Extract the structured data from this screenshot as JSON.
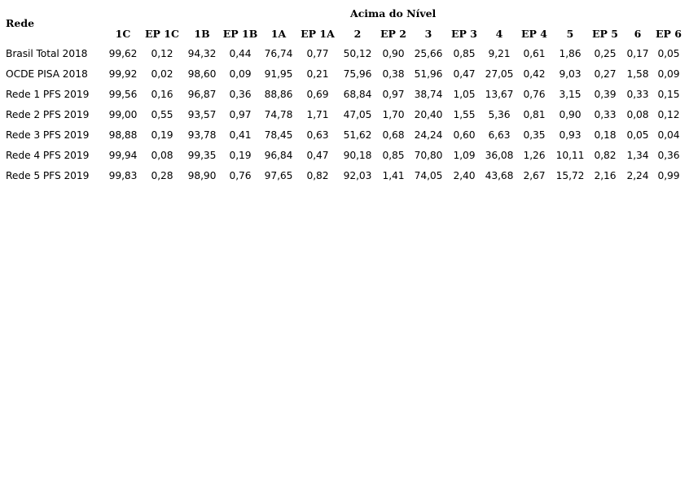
{
  "table": {
    "row_header": "Rede",
    "group_header": "Acima do Nível",
    "columns": [
      "1C",
      "EP 1C",
      "1B",
      "EP 1B",
      "1A",
      "EP 1A",
      "2",
      "EP 2",
      "3",
      "EP 3",
      "4",
      "EP 4",
      "5",
      "EP 5",
      "6",
      "EP 6"
    ],
    "rows": [
      {
        "label": "Brasil Total 2018",
        "values": [
          "99,62",
          "0,12",
          "94,32",
          "0,44",
          "76,74",
          "0,77",
          "50,12",
          "0,90",
          "25,66",
          "0,85",
          "9,21",
          "0,61",
          "1,86",
          "0,25",
          "0,17",
          "0,05"
        ]
      },
      {
        "label": "OCDE PISA 2018",
        "values": [
          "99,92",
          "0,02",
          "98,60",
          "0,09",
          "91,95",
          "0,21",
          "75,96",
          "0,38",
          "51,96",
          "0,47",
          "27,05",
          "0,42",
          "9,03",
          "0,27",
          "1,58",
          "0,09"
        ]
      },
      {
        "label": "Rede 1 PFS 2019",
        "values": [
          "99,56",
          "0,16",
          "96,87",
          "0,36",
          "88,86",
          "0,69",
          "68,84",
          "0,97",
          "38,74",
          "1,05",
          "13,67",
          "0,76",
          "3,15",
          "0,39",
          "0,33",
          "0,15"
        ]
      },
      {
        "label": "Rede 2 PFS 2019",
        "values": [
          "99,00",
          "0,55",
          "93,57",
          "0,97",
          "74,78",
          "1,71",
          "47,05",
          "1,70",
          "20,40",
          "1,55",
          "5,36",
          "0,81",
          "0,90",
          "0,33",
          "0,08",
          "0,12"
        ]
      },
      {
        "label": "Rede 3 PFS 2019",
        "values": [
          "98,88",
          "0,19",
          "93,78",
          "0,41",
          "78,45",
          "0,63",
          "51,62",
          "0,68",
          "24,24",
          "0,60",
          "6,63",
          "0,35",
          "0,93",
          "0,18",
          "0,05",
          "0,04"
        ]
      },
      {
        "label": "Rede 4 PFS 2019",
        "values": [
          "99,94",
          "0,08",
          "99,35",
          "0,19",
          "96,84",
          "0,47",
          "90,18",
          "0,85",
          "70,80",
          "1,09",
          "36,08",
          "1,26",
          "10,11",
          "0,82",
          "1,34",
          "0,36"
        ]
      },
      {
        "label": "Rede 5 PFS 2019",
        "values": [
          "99,83",
          "0,28",
          "98,90",
          "0,76",
          "97,65",
          "0,82",
          "92,03",
          "1,41",
          "74,05",
          "2,40",
          "43,68",
          "2,67",
          "15,72",
          "2,16",
          "2,24",
          "0,99"
        ]
      }
    ]
  }
}
